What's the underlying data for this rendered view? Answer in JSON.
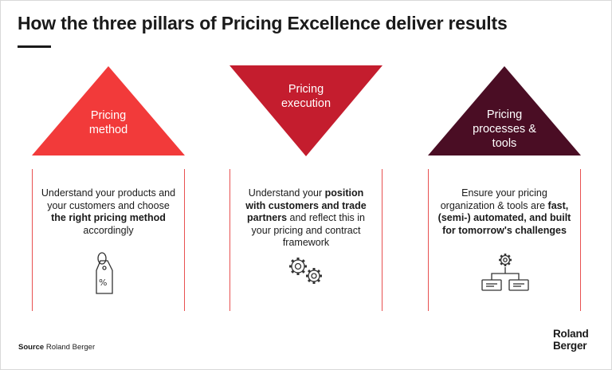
{
  "title": "How the three pillars of Pricing Excellence deliver results",
  "pillars": [
    {
      "label": "Pricing\nmethod",
      "color": "#f23a3a",
      "icon": "price-tag-percent-icon",
      "text": {
        "t1": "Understand your products and your customers and choose ",
        "b1": "the right pricing method",
        "t2": " accordingly",
        "b2": "",
        "t3": ""
      }
    },
    {
      "label": "Pricing\nexecution",
      "color": "#c41d2e",
      "icon": "gears-icon",
      "text": {
        "t1": "Understand your ",
        "b1": "position with customers and trade partners",
        "t2": " and reflect this in your pricing and contract framework",
        "b2": "",
        "t3": ""
      }
    },
    {
      "label": "Pricing\nprocesses &\ntools",
      "color": "#4a0d24",
      "icon": "gear-org-chart-icon",
      "text": {
        "t1": "Ensure your pricing organization & tools are ",
        "b1": "fast, (semi-) automated, and built for tomorrow's challenges",
        "t2": "",
        "b2": "",
        "t3": ""
      }
    }
  ],
  "source": {
    "label": "Source",
    "value": "Roland Berger"
  },
  "logo": "Roland\nBerger"
}
